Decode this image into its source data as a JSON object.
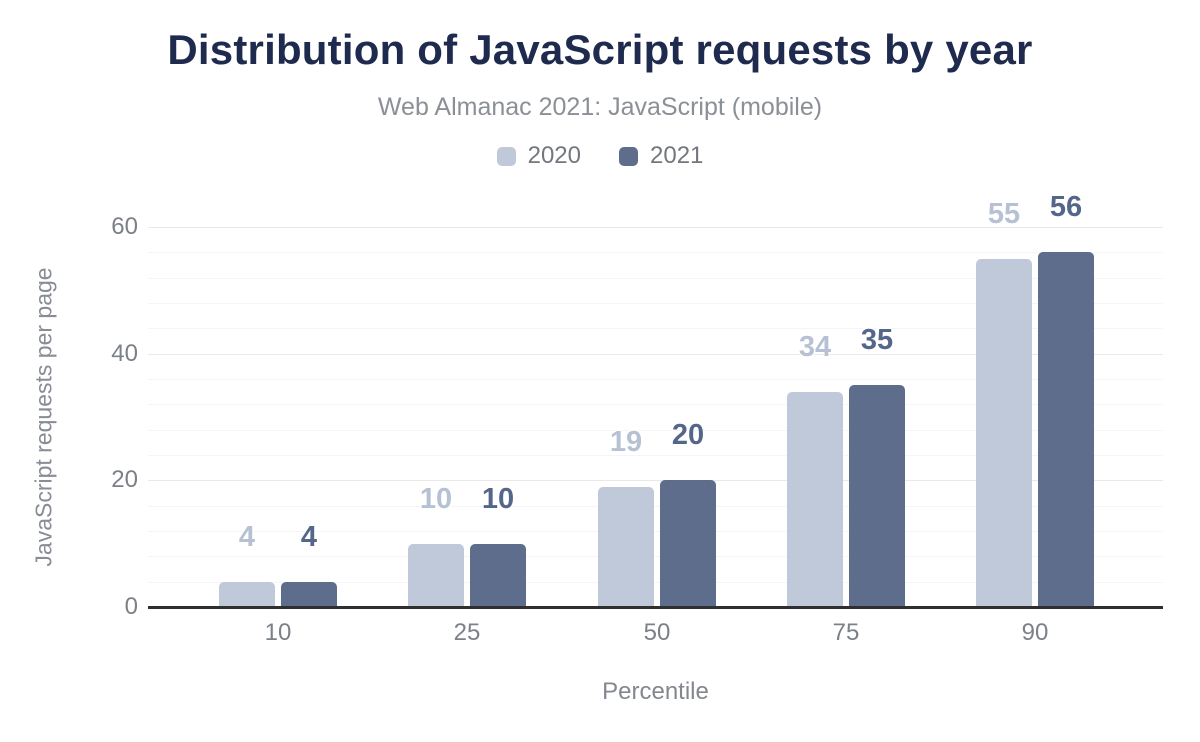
{
  "header": {
    "title": "Distribution of JavaScript requests by year",
    "subtitle": "Web Almanac 2021: JavaScript (mobile)"
  },
  "legend": {
    "items": [
      {
        "label": "2020",
        "color": "#c0c9d9"
      },
      {
        "label": "2021",
        "color": "#5e6d8c"
      }
    ]
  },
  "chart_data": {
    "type": "bar",
    "title": "Distribution of JavaScript requests by year",
    "subtitle": "Web Almanac 2021: JavaScript (mobile)",
    "categories": [
      "10",
      "25",
      "50",
      "75",
      "90"
    ],
    "series": [
      {
        "name": "2020",
        "values": [
          4,
          10,
          19,
          34,
          55
        ],
        "color": "#c0c9d9",
        "label_color": "#b7c1d4"
      },
      {
        "name": "2021",
        "values": [
          4,
          10,
          20,
          35,
          56
        ],
        "color": "#5e6d8c",
        "label_color": "#55668b"
      }
    ],
    "xlabel": "Percentile",
    "ylabel": "JavaScript requests per page",
    "ylim": [
      0,
      60
    ],
    "yticks": [
      0,
      20,
      40,
      60
    ],
    "minor_grid_step": 4,
    "grid": true,
    "legend_position": "top",
    "data_labels": true
  },
  "colors": {
    "title_text": "#1f2b4e",
    "subtitle_text": "#8b9097",
    "axis_text": "#7c8087",
    "axis_line": "#2f2f2f",
    "grid_major": "#e9e9e9",
    "grid_minor": "#f5f5f5",
    "background": "#ffffff"
  }
}
